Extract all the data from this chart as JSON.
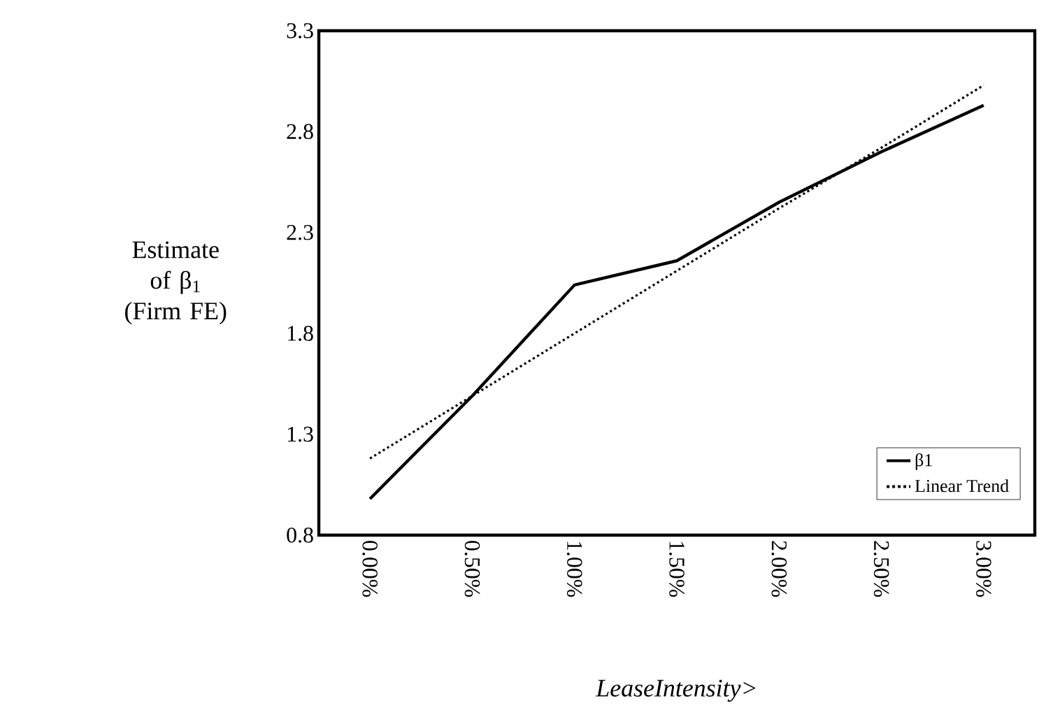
{
  "chart_data": {
    "type": "line",
    "xlabel": "LeaseIntensity>",
    "ylabel": "Estimate of β$_{1}$ (Firm FE)",
    "categories": [
      "0.00%",
      "0.50%",
      "1.00%",
      "1.50%",
      "2.00%",
      "2.50%",
      "3.00%"
    ],
    "series": [
      {
        "name": "β1",
        "color": "#000000",
        "line_style": "solid",
        "values": [
          0.98,
          1.49,
          2.04,
          2.16,
          2.45,
          2.7,
          2.93
        ]
      },
      {
        "name": "Linear Trend",
        "color": "#000000",
        "line_style": "dotted",
        "values": [
          1.18,
          1.49,
          1.8,
          2.11,
          2.42,
          2.72,
          3.03
        ]
      }
    ],
    "ylim": [
      0.8,
      3.3
    ],
    "yticks": [
      0.8,
      1.3,
      1.8,
      2.3,
      2.8,
      3.3
    ],
    "legend": "bottom right",
    "marker": "none",
    "grid": false
  }
}
